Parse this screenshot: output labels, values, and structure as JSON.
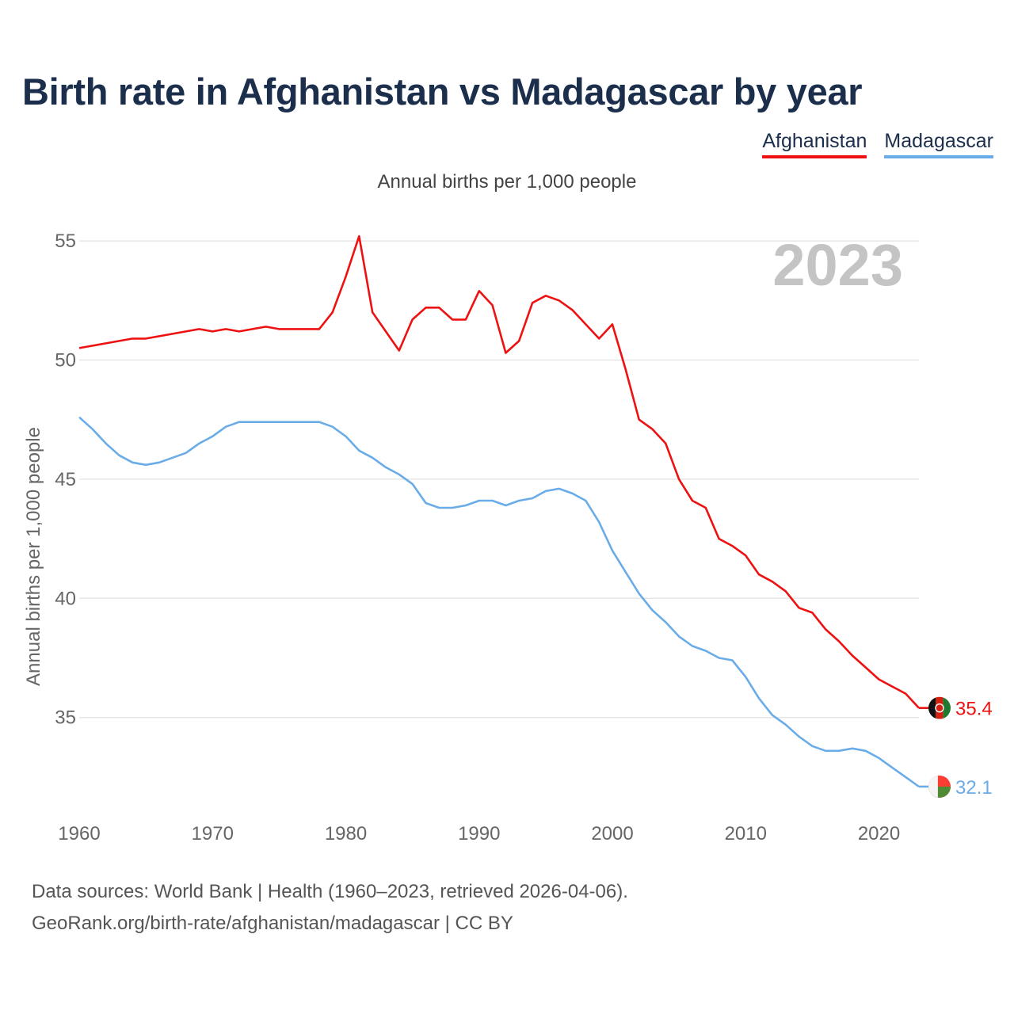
{
  "header": {
    "title": "Birth rate in Afghanistan vs Madagascar by year",
    "subtitle": "Annual births per 1,000 people"
  },
  "legend": [
    {
      "name": "Afghanistan",
      "color": "#ee1111"
    },
    {
      "name": "Madagascar",
      "color": "#6aace8"
    }
  ],
  "footer": {
    "sources": "Data sources: World Bank | Health (1960–2023, retrieved 2026-04-06).",
    "attribution": "GeoRank.org/birth-rate/afghanistan/madagascar | CC BY"
  },
  "chart_data": {
    "type": "line",
    "title": "Birth rate in Afghanistan vs Madagascar by year",
    "subtitle": "Annual births per 1,000 people",
    "xlabel": "",
    "ylabel": "Annual births per 1,000 people",
    "year_watermark": "2023",
    "xlim": [
      1960,
      2023
    ],
    "ylim": [
      31.5,
      56
    ],
    "xticks": [
      1960,
      1970,
      1980,
      1990,
      2000,
      2010,
      2020
    ],
    "yticks": [
      35,
      40,
      45,
      50,
      55
    ],
    "grid": true,
    "legend_position": "top-right",
    "x": [
      1960,
      1961,
      1962,
      1963,
      1964,
      1965,
      1966,
      1967,
      1968,
      1969,
      1970,
      1971,
      1972,
      1973,
      1974,
      1975,
      1976,
      1977,
      1978,
      1979,
      1980,
      1981,
      1982,
      1983,
      1984,
      1985,
      1986,
      1987,
      1988,
      1989,
      1990,
      1991,
      1992,
      1993,
      1994,
      1995,
      1996,
      1997,
      1998,
      1999,
      2000,
      2001,
      2002,
      2003,
      2004,
      2005,
      2006,
      2007,
      2008,
      2009,
      2010,
      2011,
      2012,
      2013,
      2014,
      2015,
      2016,
      2017,
      2018,
      2019,
      2020,
      2021,
      2022,
      2023
    ],
    "series": [
      {
        "name": "Afghanistan",
        "color": "#ee1111",
        "end_label": "35.4",
        "flag": "afghanistan-flag",
        "values": [
          50.5,
          50.6,
          50.7,
          50.8,
          50.9,
          50.9,
          51.0,
          51.1,
          51.2,
          51.3,
          51.2,
          51.3,
          51.2,
          51.3,
          51.4,
          51.3,
          51.3,
          51.3,
          51.3,
          52.0,
          53.5,
          55.2,
          52.0,
          51.2,
          50.4,
          51.7,
          52.2,
          52.2,
          51.7,
          51.7,
          52.9,
          52.3,
          50.3,
          50.8,
          52.4,
          52.7,
          52.5,
          52.1,
          51.5,
          50.9,
          51.5,
          49.6,
          47.5,
          47.1,
          46.5,
          45.0,
          44.1,
          43.8,
          42.5,
          42.2,
          41.8,
          41.0,
          40.7,
          40.3,
          39.6,
          39.4,
          38.7,
          38.2,
          37.6,
          37.1,
          36.6,
          36.3,
          36.0,
          35.4
        ]
      },
      {
        "name": "Madagascar",
        "color": "#6aace8",
        "end_label": "32.1",
        "flag": "madagascar-flag",
        "values": [
          47.6,
          47.1,
          46.5,
          46.0,
          45.7,
          45.6,
          45.7,
          45.9,
          46.1,
          46.5,
          46.8,
          47.2,
          47.4,
          47.4,
          47.4,
          47.4,
          47.4,
          47.4,
          47.4,
          47.2,
          46.8,
          46.2,
          45.9,
          45.5,
          45.2,
          44.8,
          44.0,
          43.8,
          43.8,
          43.9,
          44.1,
          44.1,
          43.9,
          44.1,
          44.2,
          44.5,
          44.6,
          44.4,
          44.1,
          43.2,
          42.0,
          41.1,
          40.2,
          39.5,
          39.0,
          38.4,
          38.0,
          37.8,
          37.5,
          37.4,
          36.7,
          35.8,
          35.1,
          34.7,
          34.2,
          33.8,
          33.6,
          33.6,
          33.7,
          33.6,
          33.3,
          32.9,
          32.5,
          32.1
        ]
      }
    ]
  }
}
